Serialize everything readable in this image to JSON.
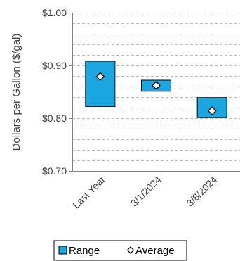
{
  "chart_data": {
    "type": "floating-bar",
    "categories": [
      "Last Year",
      "3/1/2024",
      "3/8/2024"
    ],
    "series": [
      {
        "name": "Range",
        "low": [
          0.822,
          0.851,
          0.801
        ],
        "high": [
          0.908,
          0.872,
          0.839
        ]
      },
      {
        "name": "Average",
        "values": [
          0.879,
          0.862,
          0.814
        ]
      }
    ],
    "ylabel": "Dollars per Gallon ($/gal)",
    "ylim": [
      0.7,
      1.0
    ],
    "yticks": [
      "$0.70",
      "$0.80",
      "$0.90",
      "$1.00"
    ],
    "ytick_values": [
      0.7,
      0.8,
      0.9,
      1.0
    ],
    "minor_step": 0.02,
    "grid": "dashed",
    "legend_position": "bottom",
    "colors": {
      "range_fill": "#1aa7e0",
      "range_stroke": "#000000",
      "marker_fill": "#ffffff",
      "marker_stroke": "#000000",
      "grid": "#bfbfbf",
      "axis": "#808080"
    }
  }
}
